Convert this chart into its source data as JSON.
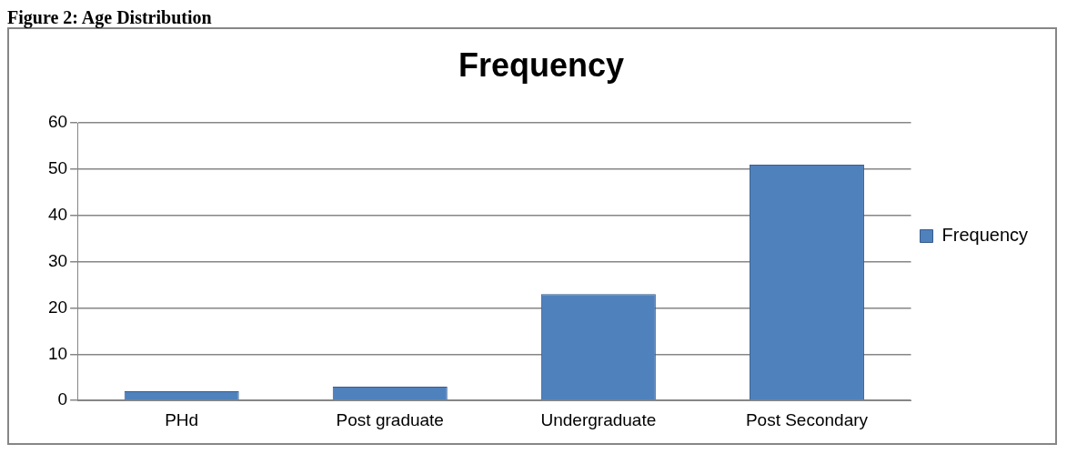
{
  "chart_data": {
    "type": "bar",
    "title": "Frequency",
    "annotations": [
      "Figure 2: Age Distribution"
    ],
    "categories": [
      "PHd",
      "Post graduate",
      "Undergraduate",
      "Post Secondary"
    ],
    "series": [
      {
        "name": "Frequency",
        "color": "#4f81bd",
        "values": [
          2,
          3,
          23,
          51
        ]
      }
    ],
    "ylim": [
      0,
      60
    ],
    "yticks": [
      0,
      10,
      20,
      30,
      40,
      50,
      60
    ],
    "grid": "y",
    "legend": "right"
  }
}
